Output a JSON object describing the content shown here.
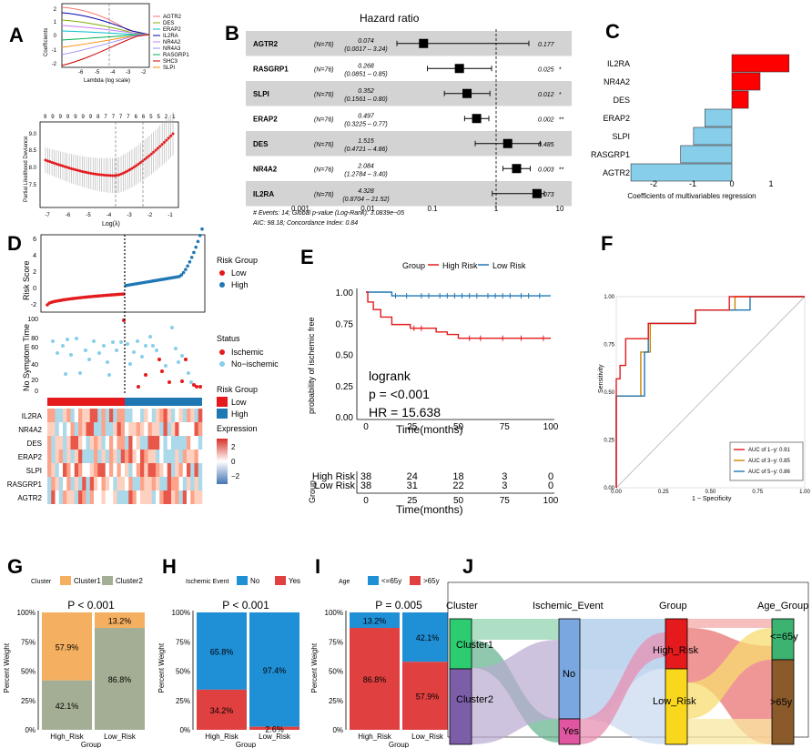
{
  "panel_labels": [
    "A",
    "B",
    "C",
    "D",
    "E",
    "F",
    "G",
    "H",
    "I",
    "J"
  ],
  "colors": {
    "red": "#e41a1c",
    "blue": "#1f77b4",
    "orange": "#f4a460",
    "sage": "#a4ae94",
    "green": "#2e8b57",
    "lightblue": "#87ceeb",
    "yellow": "#f5d742",
    "brown": "#8b5a2b",
    "purple": "#7b5ea7"
  },
  "panelA": {
    "top_xlabel": "Lambda (log scale)",
    "top_ylabel": "Coefficients",
    "legend": [
      "AGTR2",
      "DES",
      "ERAP2",
      "IL2RA",
      "NR4A2",
      "NR4A3",
      "RASGRP1",
      "SHC3",
      "SLPI"
    ],
    "legend_colors": [
      "#f8766d",
      "#7cae00",
      "#00bfc4",
      "#0000aa",
      "#c77cff",
      "#9c8fff",
      "#00b050",
      "#cc0000",
      "#ff8c00"
    ],
    "top_xticks": [
      "-6",
      "-5",
      "-4",
      "-3",
      "-2"
    ],
    "top_yticks": [
      "2",
      "1",
      "0",
      "-1",
      "-2"
    ],
    "bottom_topticks": [
      "9",
      "9",
      "9",
      "9",
      "9",
      "9",
      "9",
      "8",
      "7",
      "7",
      "7",
      "7",
      "6",
      "6",
      "5",
      "5",
      "2",
      "1"
    ],
    "bottom_xlabel": "Log(λ)",
    "bottom_ylabel": "Partial Likelihood Deviance",
    "bottom_xticks": [
      "-7",
      "-6",
      "-5",
      "-4",
      "-3",
      "-2",
      "-1"
    ],
    "bottom_yticks": [
      "9.0",
      "8.5",
      "8.0",
      "7.5"
    ]
  },
  "panelB": {
    "title": "Hazard ratio",
    "rows": [
      {
        "gene": "AGTR2",
        "n": "(N=76)",
        "hr": "0.074",
        "ci": "(0.0017 – 3.24)",
        "p": "0.177",
        "sig": ""
      },
      {
        "gene": "RASGRP1",
        "n": "(N=76)",
        "hr": "0.268",
        "ci": "(0.0851 – 0.85)",
        "p": "0.025",
        "sig": "*"
      },
      {
        "gene": "SLPI",
        "n": "(N=76)",
        "hr": "0.352",
        "ci": "(0.1561 – 0.80)",
        "p": "0.012",
        "sig": "*"
      },
      {
        "gene": "ERAP2",
        "n": "(N=76)",
        "hr": "0.497",
        "ci": "(0.3225 – 0.77)",
        "p": "0.002",
        "sig": "**"
      },
      {
        "gene": "DES",
        "n": "(N=76)",
        "hr": "1.515",
        "ci": "(0.4721 – 4.86)",
        "p": "0.485",
        "sig": ""
      },
      {
        "gene": "NR4A2",
        "n": "(N=76)",
        "hr": "2.084",
        "ci": "(1.2784 – 3.40)",
        "p": "0.003",
        "sig": "**"
      },
      {
        "gene": "IL2RA",
        "n": "(N=76)",
        "hr": "4.328",
        "ci": "(0.8704 – 21.52)",
        "p": "0.073",
        "sig": ""
      }
    ],
    "xticks": [
      "0.001",
      "0.01",
      "0.1",
      "1",
      "10"
    ],
    "footer1": "# Events: 14; Global p-value (Log-Rank): 3.0839e−05",
    "footer2": "AIC: 98.18; Concordance Index: 0.84"
  },
  "panelC": {
    "genes": [
      "IL2RA",
      "NR4A2",
      "DES",
      "ERAP2",
      "SLPI",
      "RASGRP1",
      "AGTR2"
    ],
    "coefs": [
      1.46,
      0.72,
      0.42,
      -0.69,
      -0.98,
      -1.31,
      -2.58
    ],
    "xticks": [
      "-2",
      "-1",
      "0",
      "1"
    ],
    "xlabel": "Coefficients of multivariables regression"
  },
  "panelD": {
    "ylabel1": "Risk Score",
    "yticks1": [
      "6",
      "4",
      "2",
      "0",
      "-2"
    ],
    "ylabel2": "No Symptom Time",
    "yticks2": [
      "100",
      "80",
      "60",
      "40",
      "20",
      "0"
    ],
    "legend1_title": "Risk Group",
    "legend1": [
      "Low",
      "High"
    ],
    "legend2_title": "Status",
    "legend2": [
      "Ischemic",
      "No−ischemic"
    ],
    "legend3_title": "Risk Group",
    "legend3": [
      "Low",
      "High"
    ],
    "legend4_title": "Expression",
    "legend4_ticks": [
      "2",
      "0",
      "−2"
    ],
    "heat_genes": [
      "IL2RA",
      "NR4A2",
      "DES",
      "ERAP2",
      "SLPI",
      "RASGRP1",
      "AGTR2"
    ]
  },
  "panelE": {
    "legend_title": "Group",
    "legend": [
      "High Risk",
      "Low Risk"
    ],
    "ylabel": "probability of ischemic free",
    "yticks": [
      "1.00",
      "0.75",
      "0.50",
      "0.25",
      "0.00"
    ],
    "xticks": [
      "0",
      "25",
      "50",
      "75",
      "100"
    ],
    "xlabel": "Time(months)",
    "logrank": "logrank",
    "pval": "p = <0.001",
    "hr": "HR = 15.638",
    "table_ylabel": "Group",
    "table_rows": [
      {
        "label": "High Risk",
        "values": [
          "38",
          "24",
          "18",
          "3",
          "0"
        ]
      },
      {
        "label": "Low Risk",
        "values": [
          "38",
          "31",
          "22",
          "3",
          "0"
        ]
      }
    ],
    "table_xlabel": "Time(months)"
  },
  "panelF": {
    "ylabel": "Sensitivity",
    "xlabel": "1 − Specificity",
    "yticks": [
      "1.00",
      "0.75",
      "0.50",
      "0.25",
      "0.00"
    ],
    "xticks": [
      "0.00",
      "0.25",
      "0.50",
      "0.75",
      "1.00"
    ],
    "legend": [
      {
        "label": "AUC of 1−y:  0.91",
        "color": "#e41a1c"
      },
      {
        "label": "AUC of 3−y:  0.85",
        "color": "#cc8400"
      },
      {
        "label": "AUC of 5−y:  0.86",
        "color": "#1f77b4"
      }
    ]
  },
  "chart_data": [
    {
      "type": "bar",
      "title": "G",
      "legend_title": "Cluster",
      "legend": [
        "Cluster1",
        "Cluster2"
      ],
      "categories": [
        "High_Risk",
        "Low_Risk"
      ],
      "series": [
        {
          "name": "Cluster1",
          "values": [
            57.9,
            13.2
          ]
        },
        {
          "name": "Cluster2",
          "values": [
            42.1,
            86.8
          ]
        }
      ],
      "pval": "P < 0.001",
      "xlabel": "Group",
      "ylabel": "Percent Weight",
      "yticks": [
        "100%",
        "75%",
        "50%",
        "25%",
        "0%"
      ],
      "labels": [
        [
          "57.9%",
          "42.1%"
        ],
        [
          "13.2%",
          "86.8%"
        ]
      ]
    },
    {
      "type": "bar",
      "title": "H",
      "legend_title": "Ischemic Event",
      "legend": [
        "No",
        "Yes"
      ],
      "categories": [
        "High_Risk",
        "Low_Risk"
      ],
      "series": [
        {
          "name": "No",
          "values": [
            65.8,
            97.4
          ]
        },
        {
          "name": "Yes",
          "values": [
            34.2,
            2.6
          ]
        }
      ],
      "pval": "P < 0.001",
      "xlabel": "Group",
      "ylabel": "Percent Weight",
      "yticks": [
        "100%",
        "75%",
        "50%",
        "25%",
        "0%"
      ],
      "labels": [
        [
          "65.8%",
          "34.2%"
        ],
        [
          "97.4%",
          "2.6%"
        ]
      ]
    },
    {
      "type": "bar",
      "title": "I",
      "legend_title": "Age",
      "legend": [
        "<=65y",
        ">65y"
      ],
      "categories": [
        "High_Risk",
        "Low_Risk"
      ],
      "series": [
        {
          "name": "<=65y",
          "values": [
            13.2,
            42.1
          ]
        },
        {
          "name": ">65y",
          "values": [
            86.8,
            57.9
          ]
        }
      ],
      "pval": "P = 0.005",
      "xlabel": "Group",
      "ylabel": "Percent Weight",
      "yticks": [
        "100%",
        "75%",
        "50%",
        "25%",
        "0%"
      ],
      "labels": [
        [
          "13.2%",
          "86.8%"
        ],
        [
          "42.1%",
          "57.9%"
        ]
      ]
    }
  ],
  "panelJ": {
    "axes": [
      "Cluster",
      "Ischemic_Event",
      "Group",
      "Age_Group"
    ],
    "nodes": [
      "Cluster1",
      "Cluster2",
      "No",
      "Yes",
      "High_Risk",
      "Low_Risk",
      "<=65y",
      ">65y"
    ]
  }
}
